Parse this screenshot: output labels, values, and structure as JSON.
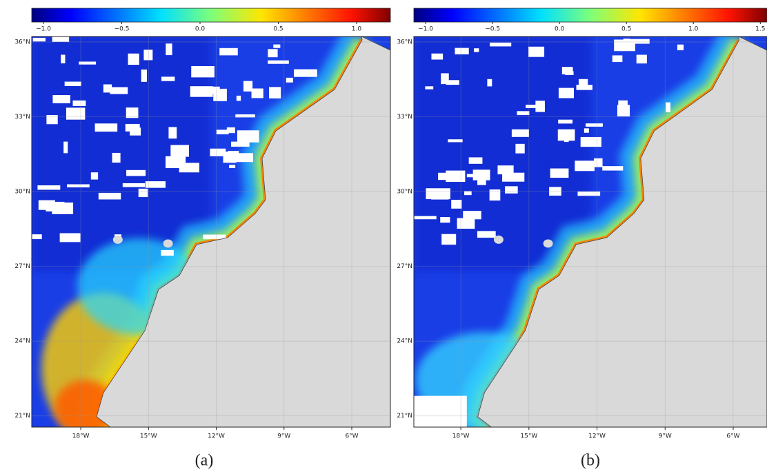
{
  "panels": [
    {
      "caption": "(a)",
      "colorbar": {
        "clim": [
          -1.075,
          1.216
        ],
        "ticks": [
          {
            "value": -1.0,
            "label": "−1.0"
          },
          {
            "value": -0.5,
            "label": "−0.5"
          },
          {
            "value": 0.0,
            "label": "0.0"
          },
          {
            "value": 0.5,
            "label": "0.5"
          },
          {
            "value": 1.0,
            "label": "1.0"
          }
        ]
      },
      "xlim": [
        -20.17,
        -4.29
      ],
      "ylim": [
        20.55,
        36.22
      ],
      "xticks": [
        {
          "value": -18,
          "label": "18°W"
        },
        {
          "value": -15,
          "label": "15°W"
        },
        {
          "value": -12,
          "label": "12°W"
        },
        {
          "value": -9,
          "label": "9°W"
        },
        {
          "value": -6,
          "label": "6°W"
        }
      ],
      "yticks": [
        {
          "value": 21,
          "label": "21°N"
        },
        {
          "value": 24,
          "label": "24°N"
        },
        {
          "value": 27,
          "label": "27°N"
        },
        {
          "value": 30,
          "label": "30°N"
        },
        {
          "value": 33,
          "label": "33°N"
        },
        {
          "value": 36,
          "label": "36°N"
        }
      ]
    },
    {
      "caption": "(b)",
      "colorbar": {
        "clim": [
          -1.088,
          1.55
        ],
        "ticks": [
          {
            "value": -1.0,
            "label": "−1.0"
          },
          {
            "value": -0.5,
            "label": "−0.5"
          },
          {
            "value": 0.0,
            "label": "0.0"
          },
          {
            "value": 0.5,
            "label": "0.5"
          },
          {
            "value": 1.0,
            "label": "1.0"
          },
          {
            "value": 1.5,
            "label": "1.5"
          }
        ]
      },
      "xlim": [
        -20.07,
        -4.51
      ],
      "ylim": [
        20.55,
        36.22
      ],
      "xticks": [
        {
          "value": -18,
          "label": "18°W"
        },
        {
          "value": -15,
          "label": "15°W"
        },
        {
          "value": -12,
          "label": "12°W"
        },
        {
          "value": -9,
          "label": "9°W"
        },
        {
          "value": -6,
          "label": "6°W"
        }
      ],
      "yticks": [
        {
          "value": 21,
          "label": "21°N"
        },
        {
          "value": 24,
          "label": "24°N"
        },
        {
          "value": 27,
          "label": "27°N"
        },
        {
          "value": 30,
          "label": "30°N"
        },
        {
          "value": 33,
          "label": "33°N"
        },
        {
          "value": 36,
          "label": "36°N"
        }
      ]
    }
  ]
}
